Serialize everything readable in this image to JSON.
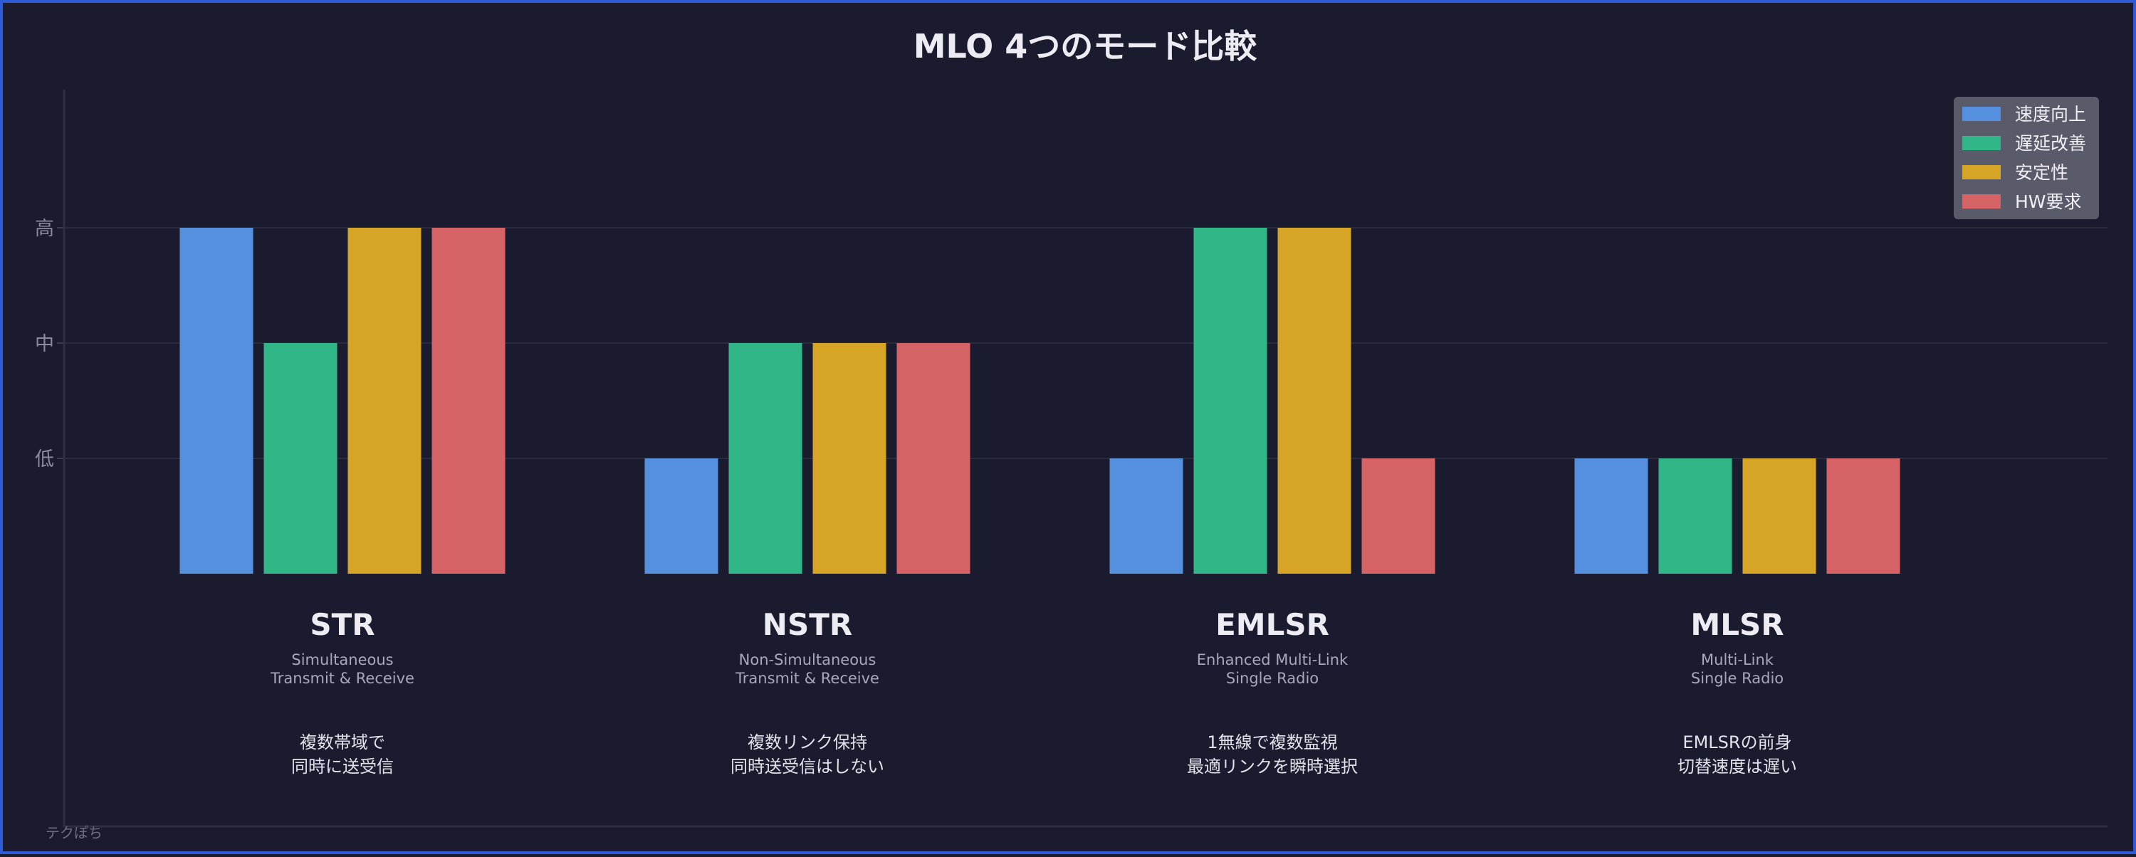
{
  "chart_data": {
    "type": "bar",
    "title": "MLO 4つのモード比較",
    "yticks": [
      {
        "value": 1,
        "label": "低"
      },
      {
        "value": 2,
        "label": "中"
      },
      {
        "value": 3,
        "label": "高"
      }
    ],
    "ylim": [
      0,
      4.2
    ],
    "grid": true,
    "legend_position": "top-right",
    "categories": [
      "STR",
      "NSTR",
      "EMLSR",
      "MLSR"
    ],
    "category_details": [
      {
        "name": "STR",
        "subtitle": [
          "Simultaneous",
          "Transmit & Receive"
        ],
        "note": [
          "複数帯域で",
          "同時に送受信"
        ]
      },
      {
        "name": "NSTR",
        "subtitle": [
          "Non-Simultaneous",
          "Transmit & Receive"
        ],
        "note": [
          "複数リンク保持",
          "同時送受信はしない"
        ]
      },
      {
        "name": "EMLSR",
        "subtitle": [
          "Enhanced Multi-Link",
          "Single Radio"
        ],
        "note": [
          "1無線で複数監視",
          "最適リンクを瞬時選択"
        ]
      },
      {
        "name": "MLSR",
        "subtitle": [
          "Multi-Link",
          "Single Radio"
        ],
        "note": [
          "EMLSRの前身",
          "切替速度は遅い"
        ]
      }
    ],
    "series": [
      {
        "name": "速度向上",
        "color": "#5590de",
        "values": [
          3,
          1,
          1,
          1
        ]
      },
      {
        "name": "遅延改善",
        "color": "#31b688",
        "values": [
          2,
          2,
          3,
          1
        ]
      },
      {
        "name": "安定性",
        "color": "#d6a526",
        "values": [
          3,
          2,
          3,
          1
        ]
      },
      {
        "name": "HW要求",
        "color": "#d66466",
        "values": [
          3,
          2,
          1,
          1
        ]
      }
    ]
  },
  "watermark": "テクぽち",
  "colors": {
    "background": "#1a1b2e",
    "border": "#2f5bd8",
    "grid": "#2a2c3e",
    "legend_bg": "#5d5e6e"
  }
}
